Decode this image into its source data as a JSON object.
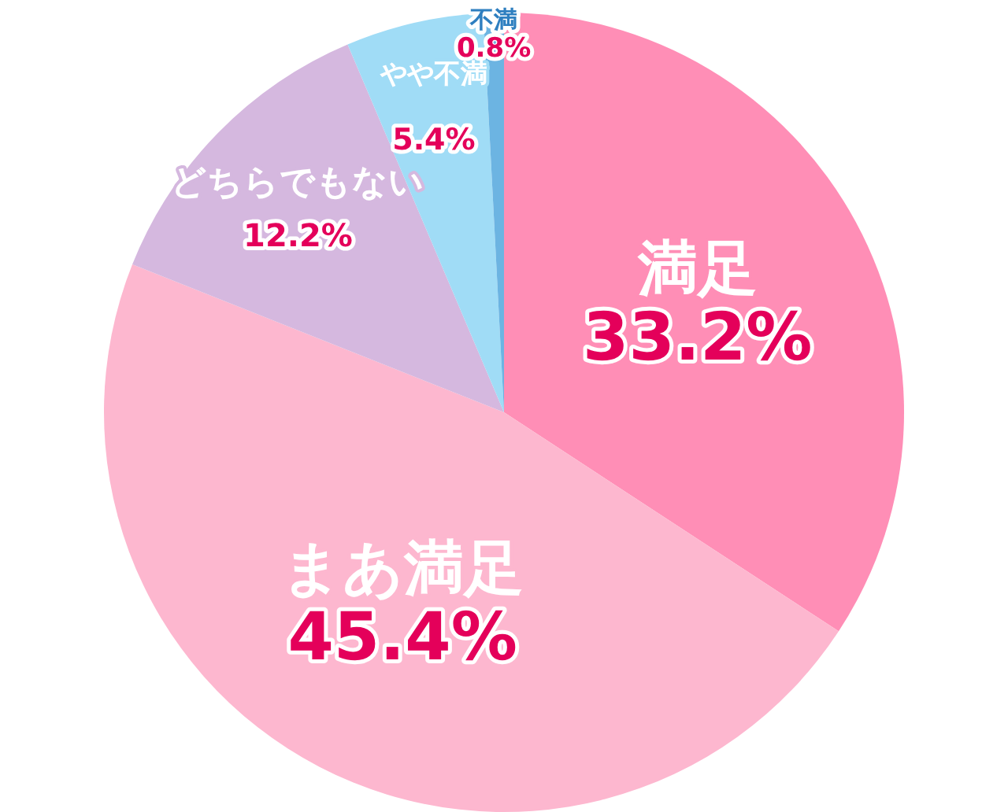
{
  "chart_data": {
    "type": "pie",
    "categories": [
      "満足",
      "まあ満足",
      "どちらでもない",
      "やや不満",
      "不満"
    ],
    "values": [
      33.2,
      45.4,
      12.2,
      5.4,
      0.8
    ],
    "colors": [
      "#ff8eb6",
      "#fdb7cf",
      "#d5b8df",
      "#a0dcf6",
      "#6cb4e2"
    ],
    "value_labels": [
      "33.2%",
      "45.4%",
      "12.2%",
      "5.4%",
      "0.8%"
    ],
    "legend": false
  }
}
